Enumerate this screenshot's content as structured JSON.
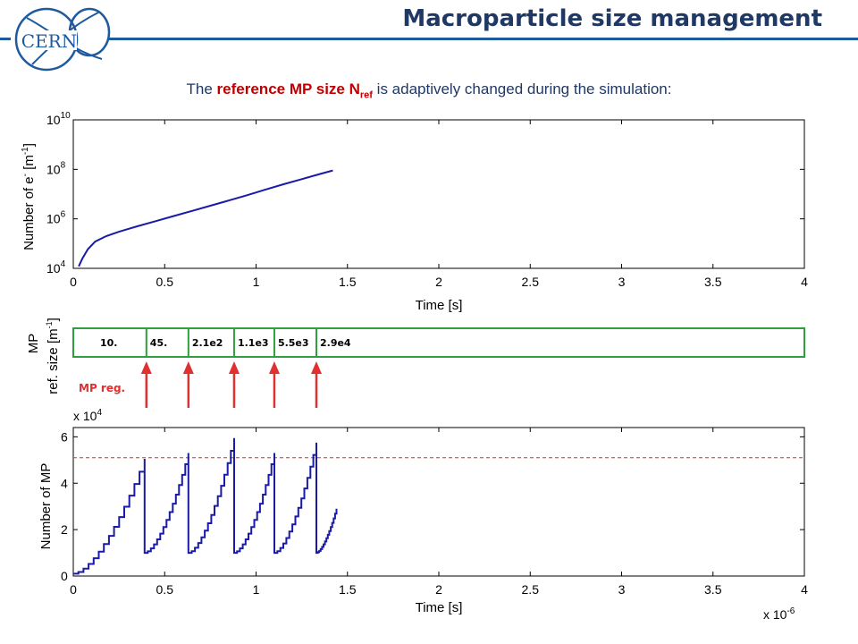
{
  "header": {
    "title": "Macroparticle size management",
    "logo_text": "CERN",
    "accent_color": "#1f5a9e"
  },
  "subtitle": {
    "prefix": "The ",
    "highlight": "reference MP size N",
    "highlight_sub": "ref",
    "suffix": " is adaptively changed during the simulation:"
  },
  "chart_data": [
    {
      "type": "line",
      "yscale": "log",
      "xlabel": "Time [s]",
      "ylabel_main": "Number of e",
      "ylabel_sup": "-",
      "ylabel_unit": " [m",
      "ylabel_unit_sup": "-1",
      "ylabel_end": "]",
      "xlim": [
        0,
        4
      ],
      "ylim": [
        10000,
        10000000000
      ],
      "xticks": [
        "0",
        "0.5",
        "1",
        "1.5",
        "2",
        "2.5",
        "3",
        "3.5",
        "4"
      ],
      "yticks": [
        {
          "value": 10000,
          "base": "10",
          "exp": "4"
        },
        {
          "value": 1000000,
          "base": "10",
          "exp": "6"
        },
        {
          "value": 100000000,
          "base": "10",
          "exp": "8"
        },
        {
          "value": 10000000000,
          "base": "10",
          "exp": "10"
        }
      ],
      "x_scale_factor": 1e-06,
      "series": [
        {
          "color": "#1a1aa8",
          "x": [
            0.03,
            0.05,
            0.08,
            0.12,
            0.18,
            0.25,
            0.35,
            0.45,
            0.55,
            0.65,
            0.75,
            0.85,
            0.95,
            1.05,
            1.15,
            1.25,
            1.35,
            1.42
          ],
          "y": [
            12000,
            25000,
            60000,
            120000,
            200000,
            300000,
            500000,
            800000,
            1300000,
            2100000,
            3400000,
            5500000,
            9000000,
            15000000,
            25000000,
            40000000,
            65000000,
            90000000
          ]
        }
      ]
    },
    {
      "type": "bar",
      "ylabel_line1": "MP",
      "ylabel_line2": "ref. size [m",
      "ylabel_line2_sup": "-1",
      "ylabel_line2_end": "]",
      "segment_border_color": "#2e9e3e",
      "segments": [
        {
          "label": "10.",
          "x_start": 0,
          "x_end": 0.4
        },
        {
          "label": "45.",
          "x_start": 0.4,
          "x_end": 0.63
        },
        {
          "label": "2.1e2",
          "x_start": 0.63,
          "x_end": 0.88
        },
        {
          "label": "1.1e3",
          "x_start": 0.88,
          "x_end": 1.1
        },
        {
          "label": "5.5e3",
          "x_start": 1.1,
          "x_end": 1.33
        },
        {
          "label": "2.9e4",
          "x_start": 1.33,
          "x_end": 4
        }
      ],
      "annotation": {
        "label": "MP reg.",
        "color": "#e03030",
        "arrow_x": [
          0.4,
          0.63,
          0.88,
          1.1,
          1.33
        ]
      }
    },
    {
      "type": "line",
      "xlabel": "Time [s]",
      "ylabel": "Number of MP",
      "xlim": [
        0,
        4
      ],
      "ylim": [
        0,
        6.4
      ],
      "xticks": [
        "0",
        "0.5",
        "1",
        "1.5",
        "2",
        "2.5",
        "3",
        "3.5",
        "4"
      ],
      "yticks": [
        "0",
        "2",
        "4",
        "6"
      ],
      "y_multiplier": "x 10",
      "y_multiplier_exp": "4",
      "x_multiplier": "x 10",
      "x_multiplier_exp": "-6",
      "threshold": {
        "value": 5.1,
        "color": "#d03030"
      },
      "series": [
        {
          "color": "#1a1aa8",
          "sawtooth": [
            {
              "start": 0.0,
              "end": 0.39,
              "y0": 0.1,
              "y1": 5.05,
              "drop_to": 1.0
            },
            {
              "start": 0.39,
              "end": 0.63,
              "y0": 1.0,
              "y1": 5.3,
              "drop_to": 1.0
            },
            {
              "start": 0.63,
              "end": 0.88,
              "y0": 1.0,
              "y1": 5.95,
              "drop_to": 1.0
            },
            {
              "start": 0.88,
              "end": 1.1,
              "y0": 1.0,
              "y1": 5.3,
              "drop_to": 1.0
            },
            {
              "start": 1.1,
              "end": 1.33,
              "y0": 1.0,
              "y1": 5.75,
              "drop_to": 1.0
            },
            {
              "start": 1.33,
              "end": 1.44,
              "y0": 1.0,
              "y1": 2.9,
              "drop_to": null
            }
          ]
        }
      ]
    }
  ]
}
